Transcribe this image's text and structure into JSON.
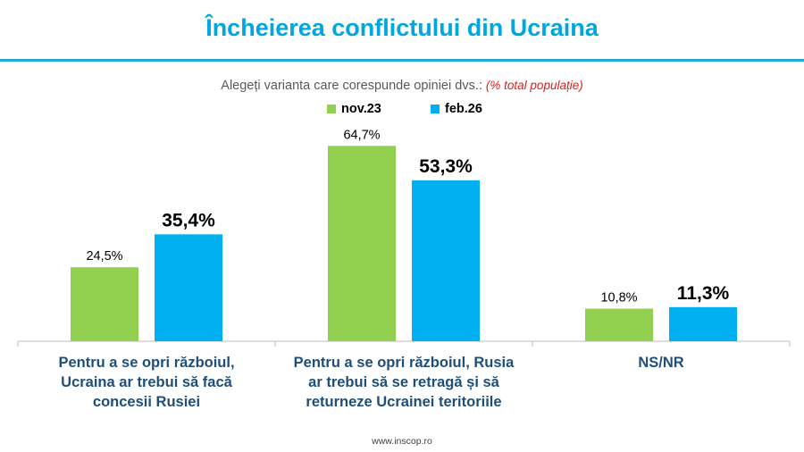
{
  "title": "Încheierea conflictului din Ucraina",
  "subtitle": {
    "text": "Alegeți varianta care corespunde opiniei dvs.:",
    "note": "(% total populație)"
  },
  "footer": "www.inscop.ro",
  "colors": {
    "title": "#00a6df",
    "green": "#92d050",
    "blue": "#00b0f0",
    "category_text": "#1f4e79",
    "axis": "#bfbfbf"
  },
  "chart_data": {
    "type": "bar",
    "categories": [
      [
        "Pentru a se opri războiul,",
        "Ucraina ar trebui să facă",
        "concesii Rusiei"
      ],
      [
        "Pentru a se opri războiul, Rusia",
        "ar trebui să se retragă și să",
        "returneze Ucrainei teritoriile"
      ],
      [
        "NS/NR"
      ]
    ],
    "series": [
      {
        "name": "nov.23",
        "color": "#92d050",
        "values": [
          24.5,
          64.7,
          10.8
        ],
        "labels": [
          "24,5%",
          "64,7%",
          "10,8%"
        ]
      },
      {
        "name": "feb.26",
        "color": "#00b0f0",
        "values": [
          35.4,
          53.3,
          11.3
        ],
        "labels": [
          "35,4%",
          "53,3%",
          "11,3%"
        ]
      }
    ],
    "ylim": [
      0,
      70
    ],
    "legend_position": "top",
    "grid": false
  }
}
